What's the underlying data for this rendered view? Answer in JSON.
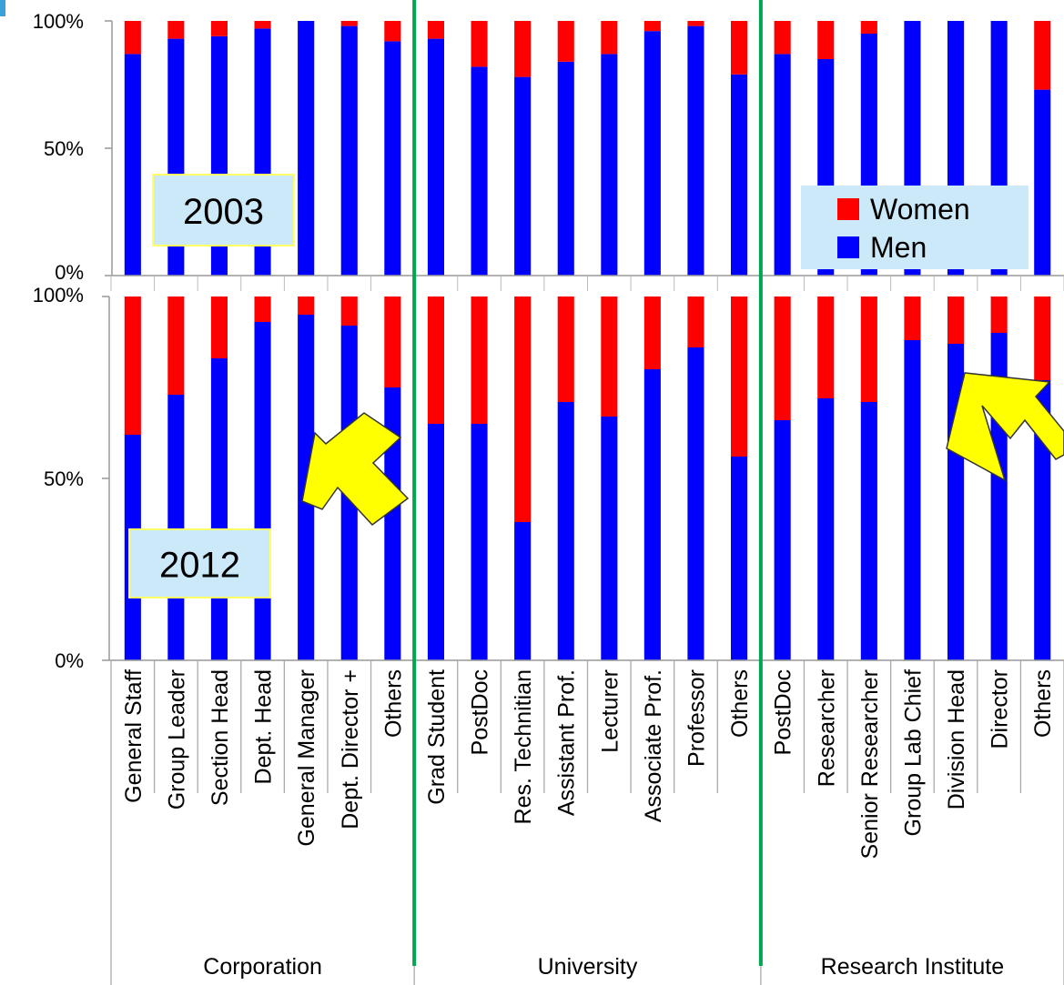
{
  "chart_data": {
    "type": "bar",
    "stacked": "percent",
    "groups": [
      {
        "label": "Corporation",
        "categories": [
          "General Staff",
          "Group Leader",
          "Section Head",
          "Dept. Head",
          "General Manager",
          "Dept. Director +",
          "Others"
        ]
      },
      {
        "label": "University",
        "categories": [
          "Grad Student",
          "PostDoc",
          "Res. Technitian",
          "Assistant Prof.",
          "Lecturer",
          "Associate Prof.",
          "Professor",
          "Others"
        ]
      },
      {
        "label": "Research Institute",
        "categories": [
          "PostDoc",
          "Researcher",
          "Senior Researcher",
          "Group Lab Chief",
          "Division Head",
          "Director",
          "Others"
        ]
      }
    ],
    "panels": [
      {
        "year": "2003",
        "ylim": [
          0,
          100
        ],
        "ticks": [
          "100%",
          "50%",
          "0%"
        ],
        "men": [
          87,
          93,
          94,
          97,
          100,
          98,
          92,
          93,
          82,
          78,
          84,
          87,
          96,
          98,
          79,
          87,
          85,
          95,
          100,
          100,
          100,
          73
        ],
        "women": [
          13,
          7,
          6,
          3,
          0,
          2,
          8,
          7,
          18,
          22,
          16,
          13,
          4,
          2,
          21,
          13,
          15,
          5,
          0,
          0,
          0,
          27
        ]
      },
      {
        "year": "2012",
        "ylim": [
          0,
          100
        ],
        "ticks": [
          "100%",
          "50%",
          "0%"
        ],
        "men": [
          62,
          73,
          83,
          93,
          95,
          92,
          75,
          65,
          65,
          38,
          71,
          67,
          80,
          86,
          56,
          66,
          72,
          71,
          88,
          87,
          90,
          77
        ],
        "women": [
          38,
          27,
          17,
          7,
          5,
          8,
          25,
          35,
          35,
          62,
          29,
          33,
          20,
          14,
          44,
          34,
          28,
          29,
          12,
          13,
          10,
          23
        ]
      }
    ],
    "legend": {
      "position": "right",
      "items": [
        {
          "label": "Women",
          "color": "#ff0000"
        },
        {
          "label": "Men",
          "color": "#0000ff"
        }
      ]
    },
    "colors": {
      "men": "#0000ff",
      "women": "#ff0000",
      "divider": "#00a550",
      "arrow": "#ffff00",
      "box": "#cce9f9",
      "box_border": "#ffff66"
    },
    "annotations": [
      "arrow",
      "arrow"
    ]
  }
}
